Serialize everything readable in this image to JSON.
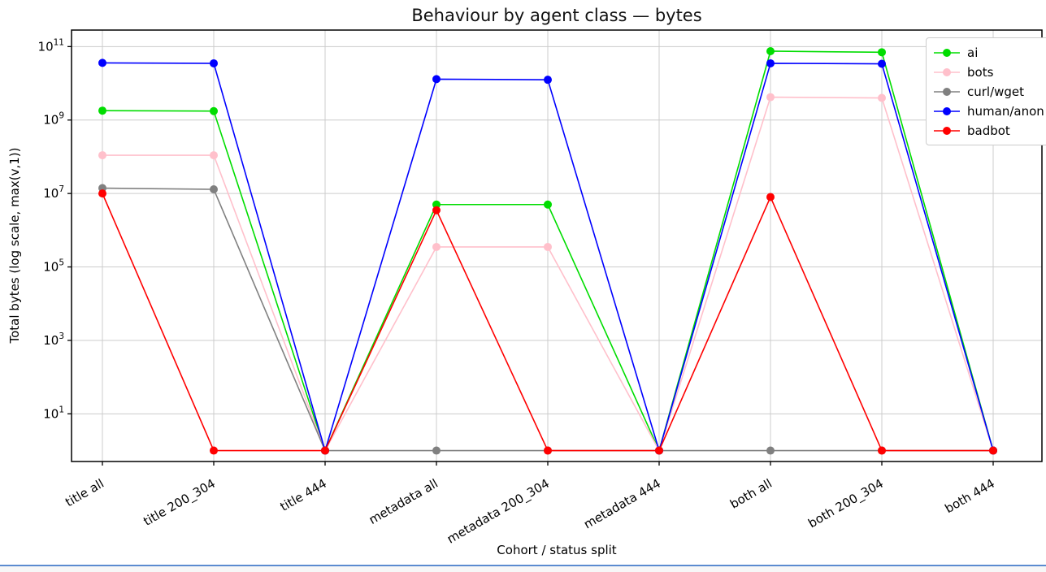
{
  "page": {
    "bottom_divider_color": "#5b8bd0"
  },
  "chart_data": {
    "type": "line",
    "title": "Behaviour by agent class — bytes",
    "xlabel": "Cohort / status split",
    "ylabel": "Total bytes (log scale, max(v,1))",
    "yscale": "log",
    "ylim": [
      0.5,
      280000000000.0
    ],
    "yticks": [
      100000000000.0,
      1000000000.0,
      10000000.0,
      100000.0,
      1000.0,
      10.0
    ],
    "grid": true,
    "grid_color": "#cccccc",
    "legend_position": "upper right",
    "x_tick_rotation_deg": 30,
    "categories": [
      "title all",
      "title 200_304",
      "title 444",
      "metadata all",
      "metadata 200_304",
      "metadata 444",
      "both all",
      "both 200_304",
      "both 444"
    ],
    "series": [
      {
        "name": "ai",
        "color": "#00dd00",
        "values": [
          1800000000.0,
          1750000000.0,
          1,
          5000000.0,
          5000000.0,
          1,
          75000000000.0,
          70000000000.0,
          1
        ]
      },
      {
        "name": "bots",
        "color": "#ffc0cb",
        "values": [
          110000000.0,
          110000000.0,
          1,
          350000.0,
          350000.0,
          1,
          4200000000.0,
          4000000000.0,
          1
        ]
      },
      {
        "name": "curl/wget",
        "color": "#808080",
        "values": [
          14000000.0,
          13000000.0,
          1,
          1,
          1,
          1,
          1,
          1,
          1
        ]
      },
      {
        "name": "human/anon",
        "color": "#0000ff",
        "values": [
          36000000000.0,
          35000000000.0,
          1,
          13000000000.0,
          12500000000.0,
          1,
          35000000000.0,
          34000000000.0,
          1
        ]
      },
      {
        "name": "badbot",
        "color": "#ff0000",
        "values": [
          10000000.0,
          1,
          1,
          3500000.0,
          1,
          1,
          8000000.0,
          1,
          1
        ]
      }
    ]
  }
}
